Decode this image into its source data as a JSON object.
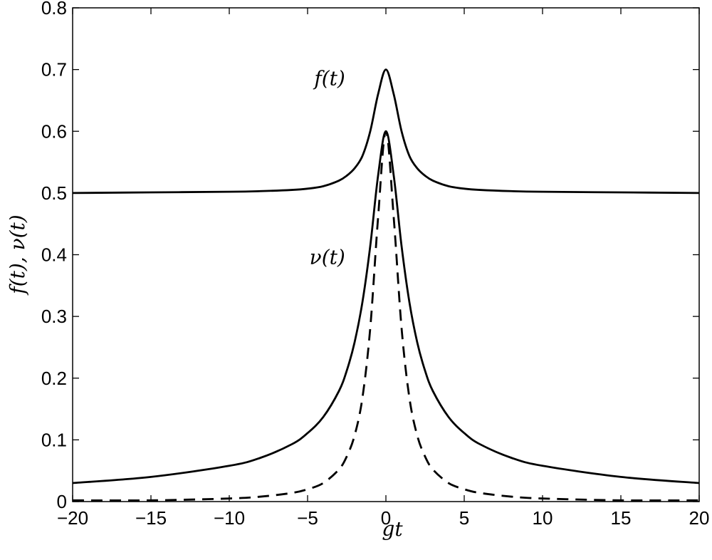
{
  "chart_data": {
    "type": "line",
    "title": "",
    "xlabel": "gt",
    "ylabel": "f(t), ν(t)",
    "xlim": [
      -20,
      20
    ],
    "ylim": [
      0,
      0.8
    ],
    "xticks": [
      -20,
      -15,
      -10,
      -5,
      0,
      5,
      10,
      15,
      20
    ],
    "xtick_labels": [
      "−20",
      "−15",
      "−10",
      "−5",
      "0",
      "5",
      "10",
      "15",
      "20"
    ],
    "yticks": [
      0,
      0.1,
      0.2,
      0.3,
      0.4,
      0.5,
      0.6,
      0.7,
      0.8
    ],
    "ytick_labels": [
      "0",
      "0.1",
      "0.2",
      "0.3",
      "0.4",
      "0.5",
      "0.6",
      "0.7",
      "0.8"
    ],
    "grid": false,
    "legend": "none",
    "series": [
      {
        "name": "f(t)",
        "style": "solid",
        "color": "#000000",
        "x": [
          -20,
          -15,
          -10,
          -8,
          -6,
          -5,
          -4,
          -3,
          -2.5,
          -2,
          -1.5,
          -1,
          -0.5,
          0,
          0.5,
          1,
          1.5,
          2,
          2.5,
          3,
          4,
          5,
          6,
          8,
          10,
          15,
          20
        ],
        "y": [
          0.5,
          0.501,
          0.502,
          0.503,
          0.505,
          0.507,
          0.511,
          0.52,
          0.528,
          0.54,
          0.56,
          0.6,
          0.66,
          0.7,
          0.66,
          0.6,
          0.56,
          0.54,
          0.528,
          0.52,
          0.511,
          0.507,
          0.505,
          0.503,
          0.502,
          0.501,
          0.5
        ]
      },
      {
        "name": "ν(t)",
        "style": "solid",
        "color": "#000000",
        "x": [
          -20,
          -15,
          -10,
          -8,
          -6,
          -5,
          -4,
          -3,
          -2.5,
          -2,
          -1.5,
          -1,
          -0.5,
          0,
          0.5,
          1,
          1.5,
          2,
          2.5,
          3,
          4,
          5,
          6,
          8,
          10,
          15,
          20
        ],
        "y": [
          0.03,
          0.04,
          0.058,
          0.071,
          0.093,
          0.111,
          0.137,
          0.179,
          0.212,
          0.258,
          0.323,
          0.414,
          0.528,
          0.6,
          0.528,
          0.414,
          0.323,
          0.258,
          0.212,
          0.179,
          0.137,
          0.111,
          0.093,
          0.071,
          0.058,
          0.04,
          0.03
        ]
      },
      {
        "name": "",
        "style": "dashed",
        "color": "#000000",
        "x": [
          -20,
          -15,
          -10,
          -8,
          -6,
          -5,
          -4,
          -3,
          -2.5,
          -2,
          -1.5,
          -1,
          -0.5,
          0,
          0.5,
          1,
          1.5,
          2,
          2.5,
          3,
          4,
          5,
          6,
          8,
          10,
          15,
          20
        ],
        "y": [
          0.002,
          0.002,
          0.005,
          0.008,
          0.014,
          0.02,
          0.03,
          0.052,
          0.073,
          0.107,
          0.168,
          0.281,
          0.46,
          0.6,
          0.46,
          0.281,
          0.168,
          0.107,
          0.073,
          0.052,
          0.03,
          0.02,
          0.014,
          0.008,
          0.005,
          0.002,
          0.002
        ]
      }
    ],
    "annotations": [
      {
        "text": "f(t)",
        "x": -2.6,
        "y": 0.675
      },
      {
        "text": "ν(t)",
        "x": -2.6,
        "y": 0.385
      }
    ]
  }
}
